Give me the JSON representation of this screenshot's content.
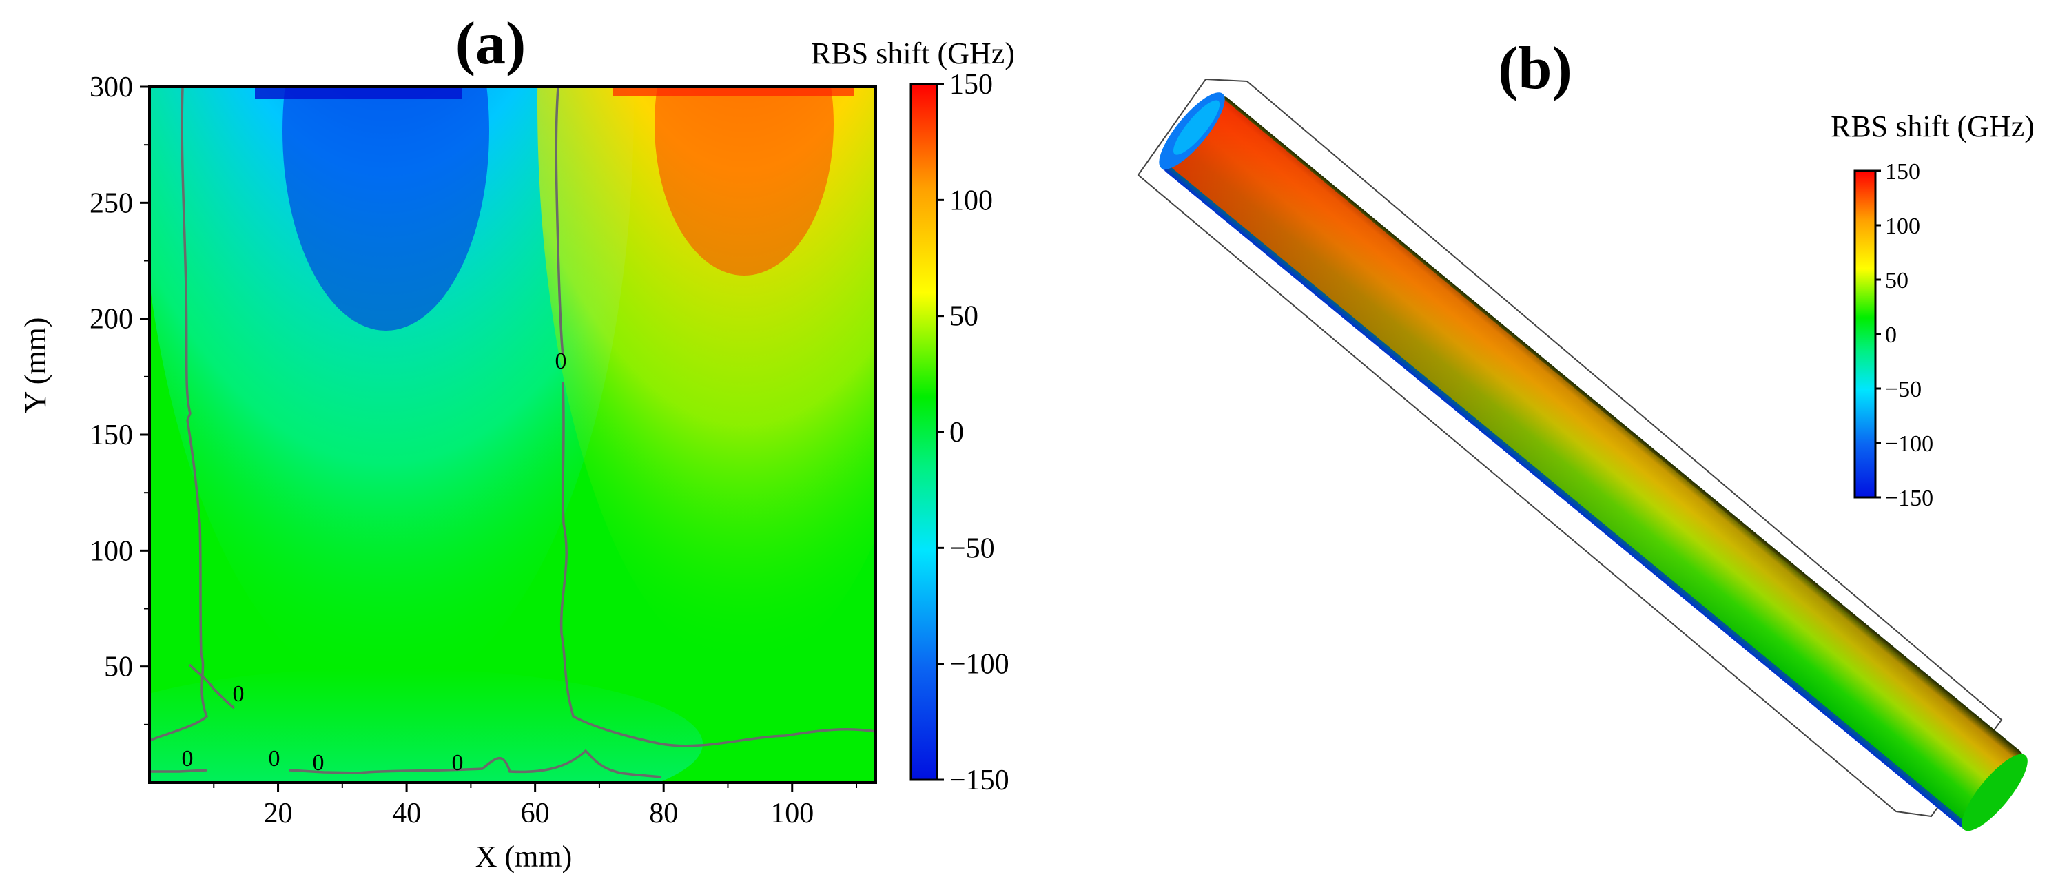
{
  "chart_data": [
    {
      "type": "heatmap",
      "panel_label": "(a)",
      "xlabel": "X (mm)",
      "ylabel": "Y (mm)",
      "xlim": [
        0,
        113
      ],
      "ylim": [
        0,
        300
      ],
      "x_ticks": [
        20,
        40,
        60,
        80,
        100
      ],
      "y_ticks": [
        50,
        100,
        150,
        200,
        250,
        300
      ],
      "colorbar": {
        "title": "RBS shift (GHz)",
        "range": [
          -150,
          150
        ],
        "ticks": [
          150,
          100,
          50,
          0,
          -50,
          -100,
          -150
        ],
        "colormap": [
          "#0010e0",
          "#0a64f2",
          "#00e6ff",
          "#00f080",
          "#00ee00",
          "#ffff00",
          "#ffa000",
          "#ff0000"
        ]
      },
      "contour_level": 0,
      "contour_labels": [
        "0",
        "0",
        "0",
        "0",
        "0",
        "0"
      ],
      "regions": [
        {
          "name": "negative lobe",
          "x_center": 35,
          "y_top": 300,
          "min_value": -140
        },
        {
          "name": "positive lobe",
          "x_center": 90,
          "y_top": 300,
          "max_value": 130
        }
      ]
    },
    {
      "type": "other",
      "panel_label": "(b)",
      "description_visible": "3D cylinder surface colored by RBS shift",
      "colorbar": {
        "title": "RBS shift (GHz)",
        "range": [
          -150,
          150
        ],
        "ticks": [
          150,
          100,
          50,
          0,
          -50,
          -100,
          -150
        ]
      }
    }
  ]
}
